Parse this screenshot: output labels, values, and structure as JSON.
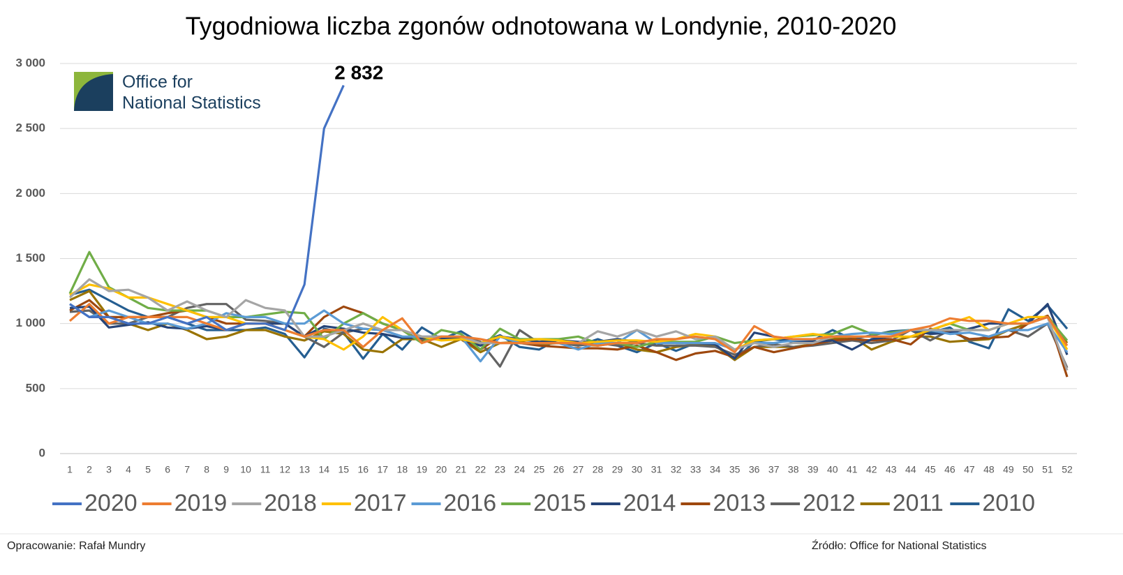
{
  "chart_data": {
    "type": "line",
    "title": "Tygodniowa liczba zgonów odnotowana w Londynie, 2010-2020",
    "x": [
      1,
      2,
      3,
      4,
      5,
      6,
      7,
      8,
      9,
      10,
      11,
      12,
      13,
      14,
      15,
      16,
      17,
      18,
      19,
      20,
      21,
      22,
      23,
      24,
      25,
      26,
      27,
      28,
      29,
      30,
      31,
      32,
      33,
      34,
      35,
      36,
      37,
      38,
      39,
      40,
      41,
      42,
      43,
      44,
      45,
      46,
      47,
      48,
      49,
      50,
      51,
      52
    ],
    "xlim": [
      0.5,
      52.5
    ],
    "ylim": [
      0,
      3000
    ],
    "yticks": [
      0,
      500,
      {
        "value": 1000,
        "label": "1 000"
      },
      {
        "value": 1500,
        "label": "1 500"
      },
      {
        "value": 2000,
        "label": "2 000"
      },
      {
        "value": 2500,
        "label": "2 500"
      },
      {
        "value": 3000,
        "label": "3 000"
      }
    ],
    "grid": true,
    "legend": "bottom",
    "series": [
      {
        "name": "2020",
        "color": "#4472c4",
        "values": [
          1150,
          1050,
          1050,
          1000,
          1000,
          1050,
          1000,
          1050,
          950,
          1000,
          1000,
          950,
          1300,
          2500,
          2832,
          null,
          null,
          null,
          null,
          null,
          null,
          null,
          null,
          null,
          null,
          null,
          null,
          null,
          null,
          null,
          null,
          null,
          null,
          null,
          null,
          null,
          null,
          null,
          null,
          null,
          null,
          null,
          null,
          null,
          null,
          null,
          null,
          null,
          null,
          null,
          null,
          null
        ],
        "value_labels": [
          null,
          null,
          null,
          null,
          null,
          null,
          null,
          null,
          null,
          null,
          null,
          null,
          null,
          null,
          "2 832",
          null,
          null,
          null,
          null,
          null,
          null,
          null,
          null,
          null,
          null,
          null,
          null,
          null,
          null,
          null,
          null,
          null,
          null,
          null,
          null,
          null,
          null,
          null,
          null,
          null,
          null,
          null,
          null,
          null,
          null,
          null,
          null,
          null,
          null,
          null,
          null,
          null
        ]
      },
      {
        "name": "2019",
        "color": "#ed7d31",
        "values": [
          1020,
          1150,
          1000,
          1050,
          1050,
          1050,
          1050,
          1000,
          950,
          1000,
          1000,
          950,
          900,
          950,
          950,
          820,
          950,
          1040,
          850,
          900,
          900,
          880,
          850,
          850,
          850,
          850,
          850,
          830,
          850,
          850,
          880,
          880,
          900,
          880,
          780,
          980,
          900,
          880,
          880,
          900,
          900,
          900,
          900,
          950,
          980,
          1040,
          1020,
          1020,
          1000,
          1000,
          1050,
          830
        ]
      },
      {
        "name": "2018",
        "color": "#a5a5a5",
        "values": [
          1200,
          1340,
          1250,
          1260,
          1200,
          1100,
          1170,
          1100,
          1050,
          1180,
          1120,
          1100,
          900,
          900,
          950,
          1000,
          950,
          950,
          900,
          900,
          900,
          850,
          850,
          850,
          850,
          850,
          850,
          940,
          900,
          950,
          900,
          940,
          880,
          900,
          800,
          850,
          820,
          850,
          850,
          900,
          900,
          900,
          900,
          950,
          950,
          950,
          950,
          950,
          1000,
          1000,
          1050,
          640
        ]
      },
      {
        "name": "2017",
        "color": "#ffc000",
        "values": [
          1220,
          1300,
          1270,
          1200,
          1200,
          1150,
          1100,
          1050,
          1050,
          1000,
          1000,
          950,
          900,
          880,
          800,
          900,
          1050,
          950,
          900,
          870,
          880,
          850,
          900,
          870,
          880,
          870,
          850,
          860,
          870,
          870,
          860,
          880,
          920,
          900,
          800,
          870,
          880,
          900,
          920,
          900,
          900,
          900,
          900,
          900,
          950,
          1000,
          1050,
          950,
          1000,
          1050,
          1050,
          800
        ]
      },
      {
        "name": "2016",
        "color": "#5b9bd5",
        "values": [
          1150,
          1050,
          1100,
          1050,
          1000,
          1000,
          960,
          1000,
          1080,
          1050,
          1050,
          1000,
          1000,
          1100,
          1000,
          960,
          950,
          900,
          900,
          900,
          900,
          710,
          900,
          850,
          850,
          850,
          800,
          850,
          850,
          950,
          850,
          850,
          850,
          850,
          800,
          850,
          850,
          870,
          880,
          900,
          920,
          930,
          920,
          950,
          950,
          920,
          930,
          900,
          950,
          950,
          1000,
          780
        ]
      },
      {
        "name": "2015",
        "color": "#70ad47",
        "values": [
          1230,
          1550,
          1280,
          1200,
          1120,
          1100,
          1100,
          1100,
          1050,
          1050,
          1070,
          1090,
          1080,
          880,
          1000,
          1080,
          1000,
          950,
          850,
          950,
          920,
          800,
          960,
          880,
          880,
          880,
          900,
          850,
          850,
          820,
          860,
          860,
          860,
          900,
          850,
          870,
          880,
          900,
          910,
          920,
          980,
          920,
          930,
          950,
          950,
          1000,
          950,
          950,
          1000,
          1000,
          1050,
          870
        ]
      },
      {
        "name": "2014",
        "color": "#264478",
        "values": [
          1120,
          1130,
          970,
          990,
          1010,
          970,
          960,
          980,
          950,
          1000,
          1000,
          1000,
          900,
          980,
          960,
          930,
          920,
          890,
          890,
          890,
          880,
          830,
          900,
          880,
          860,
          870,
          860,
          860,
          880,
          860,
          870,
          850,
          850,
          840,
          730,
          930,
          900,
          870,
          860,
          870,
          800,
          880,
          900,
          950,
          920,
          930,
          960,
          1000,
          1000,
          1000,
          1150,
          760
        ]
      },
      {
        "name": "2013",
        "color": "#9e480e",
        "values": [
          1100,
          1180,
          1050,
          1050,
          1050,
          1080,
          1100,
          1050,
          1000,
          1000,
          1000,
          1000,
          900,
          1050,
          1130,
          1080,
          1000,
          950,
          860,
          900,
          880,
          800,
          900,
          850,
          830,
          820,
          810,
          810,
          800,
          830,
          780,
          720,
          770,
          790,
          740,
          820,
          780,
          810,
          840,
          870,
          880,
          870,
          880,
          840,
          960,
          940,
          880,
          890,
          900,
          1000,
          1060,
          590
        ]
      },
      {
        "name": "2012",
        "color": "#636363",
        "values": [
          1090,
          1100,
          1000,
          1000,
          1050,
          1050,
          1120,
          1150,
          1150,
          1030,
          1020,
          1000,
          900,
          820,
          930,
          960,
          950,
          900,
          880,
          880,
          900,
          860,
          670,
          950,
          850,
          850,
          830,
          850,
          830,
          850,
          830,
          830,
          830,
          820,
          760,
          820,
          840,
          820,
          830,
          850,
          870,
          850,
          870,
          950,
          870,
          950,
          870,
          900,
          950,
          900,
          1000,
          660
        ]
      },
      {
        "name": "2011",
        "color": "#997300",
        "values": [
          1180,
          1250,
          1050,
          1000,
          950,
          1000,
          950,
          880,
          900,
          950,
          950,
          900,
          870,
          940,
          920,
          800,
          780,
          880,
          880,
          820,
          880,
          780,
          850,
          860,
          840,
          850,
          840,
          830,
          850,
          800,
          780,
          820,
          840,
          830,
          720,
          820,
          820,
          820,
          840,
          880,
          900,
          800,
          860,
          900,
          900,
          860,
          870,
          880,
          950,
          1000,
          1060,
          850
        ]
      },
      {
        "name": "2010",
        "color": "#255e91",
        "values": [
          1220,
          1260,
          1180,
          1100,
          1050,
          1050,
          1000,
          950,
          950,
          950,
          970,
          920,
          740,
          960,
          930,
          730,
          920,
          800,
          970,
          880,
          940,
          850,
          910,
          820,
          800,
          880,
          830,
          880,
          830,
          780,
          850,
          790,
          850,
          840,
          720,
          860,
          880,
          860,
          870,
          950,
          880,
          910,
          940,
          950,
          930,
          970,
          860,
          810,
          1110,
          1020,
          1140,
          960
        ]
      }
    ]
  },
  "logo": {
    "line1": "Office for",
    "line2": "National Statistics"
  },
  "footer": {
    "left": "Opracowanie: Rafał Mundry",
    "right": "Źródło: Office for National Statistics"
  }
}
